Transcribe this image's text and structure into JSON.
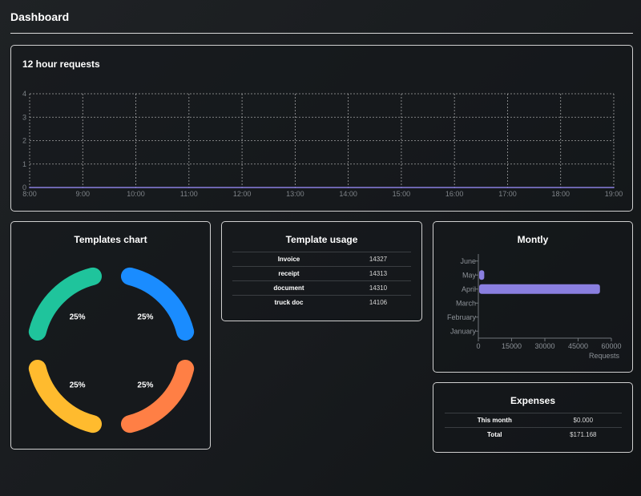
{
  "page": {
    "title": "Dashboard"
  },
  "requests_card": {
    "title": "12 hour requests",
    "chart_data": {
      "type": "line",
      "x": [
        "8:00",
        "9:00",
        "10:00",
        "11:00",
        "12:00",
        "13:00",
        "14:00",
        "15:00",
        "16:00",
        "17:00",
        "18:00",
        "19:00"
      ],
      "series": [
        {
          "values": [
            0,
            0,
            0,
            0,
            0,
            0,
            0,
            0,
            0,
            0,
            0,
            0
          ]
        }
      ],
      "y_ticks": [
        0,
        1,
        2,
        3,
        4
      ],
      "ylim": [
        0,
        4
      ],
      "grid": true,
      "series_color": "#8a7fe0"
    }
  },
  "templates_card": {
    "title": "Templates chart",
    "chart_data": {
      "type": "pie",
      "slices": [
        {
          "value": 25,
          "label": "25%",
          "color": "#1a8cff"
        },
        {
          "value": 25,
          "label": "25%",
          "color": "#ff7f45"
        },
        {
          "value": 25,
          "label": "25%",
          "color": "#ffbb2e"
        },
        {
          "value": 25,
          "label": "25%",
          "color": "#1fc49c"
        }
      ]
    }
  },
  "usage_card": {
    "title": "Template usage",
    "rows": [
      {
        "name": "Invoice",
        "count": "14327"
      },
      {
        "name": "receipt",
        "count": "14313"
      },
      {
        "name": "document",
        "count": "14310"
      },
      {
        "name": "truck doc",
        "count": "14106"
      }
    ]
  },
  "monthly_card": {
    "title": "Montly",
    "chart_data": {
      "type": "bar",
      "orientation": "horizontal",
      "categories": [
        "January",
        "February",
        "March",
        "April",
        "May",
        "June"
      ],
      "values": [
        0,
        0,
        0,
        54500,
        2300,
        0
      ],
      "x_ticks": [
        0,
        15000,
        30000,
        45000,
        60000
      ],
      "xlim": [
        0,
        60000
      ],
      "xlabel": "Requests",
      "bar_color": "#8a7fe0"
    }
  },
  "expenses_card": {
    "title": "Expenses",
    "rows": [
      {
        "name": "This month",
        "amount": "$0.000"
      },
      {
        "name": "Total",
        "amount": "$171.168"
      }
    ]
  }
}
